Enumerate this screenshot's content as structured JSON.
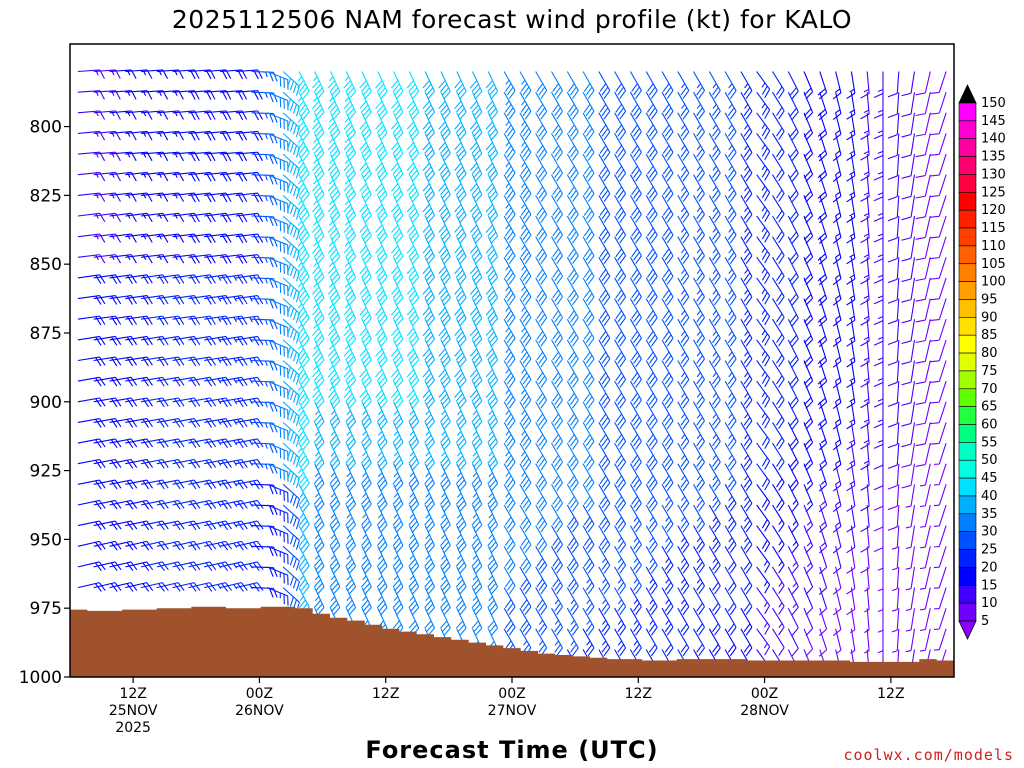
{
  "chart_data": {
    "type": "wind_profile",
    "title": "2025112506 NAM forecast wind profile (kt) for KALO",
    "xlabel": "Forecast Time (UTC)",
    "ylabel": "",
    "y_axis": {
      "range": [
        1000,
        770
      ],
      "unit": "hPa",
      "ticks": [
        "800",
        "825",
        "850",
        "875",
        "900",
        "925",
        "950",
        "975",
        "1000"
      ]
    },
    "x_axis": {
      "range_hours": [
        0,
        84
      ],
      "start": "2025112506",
      "ticks": [
        {
          "hour": 6,
          "line1": "12Z",
          "line2": "25NOV",
          "line3": "2025"
        },
        {
          "hour": 18,
          "line1": "00Z",
          "line2": "26NOV",
          "line3": ""
        },
        {
          "hour": 30,
          "line1": "12Z",
          "line2": "",
          "line3": ""
        },
        {
          "hour": 42,
          "line1": "00Z",
          "line2": "27NOV",
          "line3": ""
        },
        {
          "hour": 54,
          "line1": "12Z",
          "line2": "",
          "line3": ""
        },
        {
          "hour": 66,
          "line1": "00Z",
          "line2": "28NOV",
          "line3": ""
        },
        {
          "hour": 78,
          "line1": "12Z",
          "line2": "",
          "line3": ""
        }
      ]
    },
    "wind_samples_kt": [
      {
        "time": "25NOV 06Z-18Z",
        "level_range": "800-975",
        "speed_range": [
          5,
          25
        ],
        "direction": "W to WSW"
      },
      {
        "time": "26NOV 00Z",
        "level_range": "850-950",
        "speed_range": [
          20,
          35
        ],
        "direction": "WSW"
      },
      {
        "time": "26NOV 06Z",
        "level_range": "800-900",
        "speed_range": [
          40,
          55
        ],
        "direction": "NNW"
      },
      {
        "time": "26NOV 12Z-27NOV 00Z",
        "level_range": "800-900",
        "speed_range": [
          35,
          50
        ],
        "direction": "NNW"
      },
      {
        "time": "27NOV 00Z-28NOV 00Z",
        "level_range": "800-975",
        "speed_range": [
          20,
          35
        ],
        "direction": "NW"
      },
      {
        "time": "28NOV 06Z-12Z",
        "level_range": "900-1000",
        "speed_range": [
          5,
          15
        ],
        "direction": "N to NE"
      }
    ],
    "surface_pressure_hpa": [
      975.5,
      976,
      976,
      975.5,
      975.5,
      975,
      975,
      974.5,
      974.5,
      975,
      975,
      974.5,
      974.5,
      975,
      977,
      978.5,
      979.5,
      981,
      982.5,
      983.5,
      984.5,
      985.5,
      986.5,
      987.5,
      988.5,
      989.5,
      990.5,
      991.5,
      992,
      992.5,
      993,
      993.5,
      993.5,
      994,
      994,
      993.5,
      993.5,
      993.5,
      993.5,
      994,
      994,
      994,
      994,
      994,
      994,
      994.5,
      994.5,
      994.5,
      994.5,
      993.5,
      994
    ],
    "colorbar": {
      "title": "kt",
      "labels": [
        "150",
        "145",
        "140",
        "135",
        "130",
        "125",
        "120",
        "115",
        "110",
        "105",
        "100",
        "95",
        "90",
        "85",
        "80",
        "75",
        "70",
        "65",
        "60",
        "55",
        "50",
        "45",
        "40",
        "35",
        "30",
        "25",
        "20",
        "15",
        "10",
        "5"
      ],
      "colors": [
        "#ff00ff",
        "#ff00d0",
        "#ff00a0",
        "#ff0070",
        "#ff0040",
        "#ff0000",
        "#ff2000",
        "#ff4000",
        "#ff6000",
        "#ff8000",
        "#ffa000",
        "#ffc000",
        "#ffe000",
        "#ffff00",
        "#e0ff00",
        "#a0ff00",
        "#60ff00",
        "#20ff40",
        "#00ff80",
        "#00ffc0",
        "#00ffe0",
        "#00e0ff",
        "#00b0ff",
        "#0080ff",
        "#0050ff",
        "#0020ff",
        "#0000ff",
        "#4000ff",
        "#7000ff"
      ]
    }
  },
  "credit": "coolwx.com/models"
}
